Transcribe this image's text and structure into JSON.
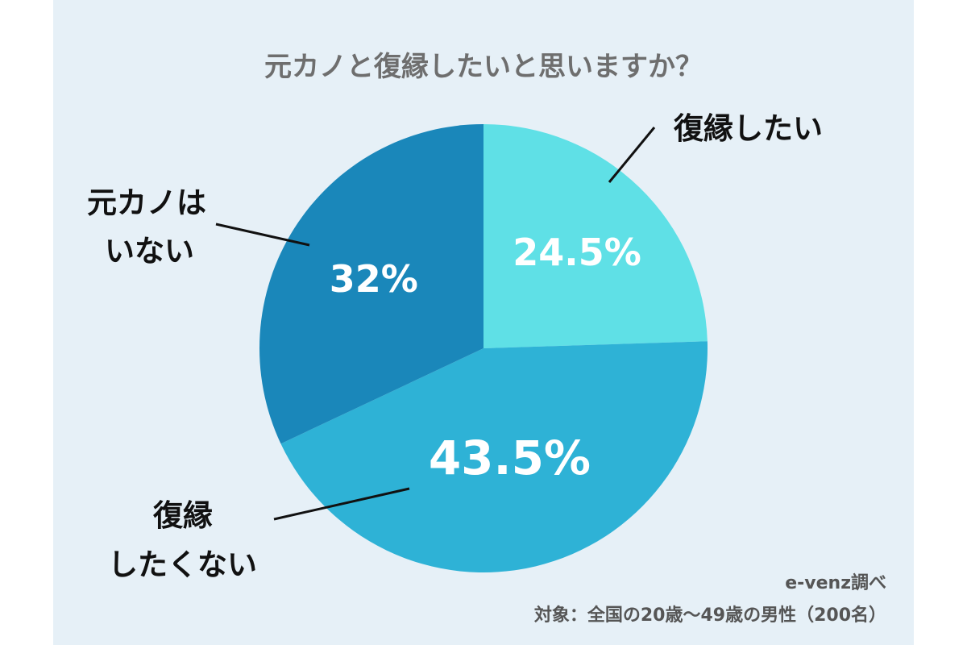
{
  "colors": {
    "background": "#e6f0f7",
    "slice_reconcile": "#5fe0e6",
    "slice_no_reconcile": "#2eb2d6",
    "slice_no_ex": "#1a87ba"
  },
  "chart_data": {
    "type": "pie",
    "title": "元カノと復縁したいと思いますか？",
    "slices": [
      {
        "label": "復縁したい",
        "value": 24.5,
        "display": "24.5%",
        "color": "#5fe0e6"
      },
      {
        "label": "復縁したくない",
        "value": 43.5,
        "display": "43.5%",
        "color": "#2eb2d6"
      },
      {
        "label": "元カノはいない",
        "value": 32,
        "display": "32%",
        "color": "#1a87ba"
      }
    ],
    "label_lines": {
      "reconcile": [
        "復縁したい"
      ],
      "no_reconcile": [
        "復縁",
        "したくない"
      ],
      "no_ex": [
        "元カノは",
        "いない"
      ]
    },
    "source": "e-venz調べ",
    "note": "対象：全国の20歳〜49歳の男性（200名）"
  }
}
